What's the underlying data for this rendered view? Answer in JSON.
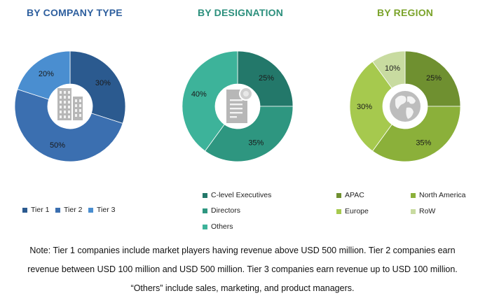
{
  "chart_data": [
    {
      "type": "pie",
      "title": "BY COMPANY TYPE",
      "donut": true,
      "icon": "building-icon",
      "slices": [
        {
          "name": "Tier 1",
          "value": 30,
          "label": "30%",
          "color": "#2b5a8f"
        },
        {
          "name": "Tier 2",
          "value": 50,
          "label": "50%",
          "color": "#3b6fb0"
        },
        {
          "name": "Tier 3",
          "value": 20,
          "label": "20%",
          "color": "#4a8ed0"
        }
      ],
      "legend": [
        "Tier 1",
        "Tier 2",
        "Tier 3"
      ]
    },
    {
      "type": "pie",
      "title": "BY DESIGNATION",
      "donut": true,
      "icon": "document-badge-icon",
      "slices": [
        {
          "name": "C-level Executives",
          "value": 25,
          "label": "25%",
          "color": "#23786a"
        },
        {
          "name": "Directors",
          "value": 35,
          "label": "35%",
          "color": "#2e9680"
        },
        {
          "name": "Others",
          "value": 40,
          "label": "40%",
          "color": "#3db39a"
        }
      ],
      "legend": [
        "C-level Executives",
        "Directors",
        "Others"
      ]
    },
    {
      "type": "pie",
      "title": "BY REGION",
      "donut": true,
      "icon": "globe-icon",
      "slices": [
        {
          "name": "APAC",
          "value": 25,
          "label": "25%",
          "color": "#6f9030"
        },
        {
          "name": "North America",
          "value": 35,
          "label": "35%",
          "color": "#8bb03a"
        },
        {
          "name": "Europe",
          "value": 30,
          "label": "30%",
          "color": "#a6c94e"
        },
        {
          "name": "RoW",
          "value": 10,
          "label": "10%",
          "color": "#c8dba0"
        }
      ],
      "legend": [
        "APAC",
        "North America",
        "Europe",
        "RoW"
      ]
    }
  ],
  "note": {
    "line1": "Note: Tier 1 companies include market players having revenue above USD 500 million. Tier 2 companies earn",
    "line2": "revenue between USD 100 million and USD 500 million. Tier 3 companies earn revenue up to USD 100 million.",
    "line3": "“Others” include sales, marketing, and product managers."
  }
}
